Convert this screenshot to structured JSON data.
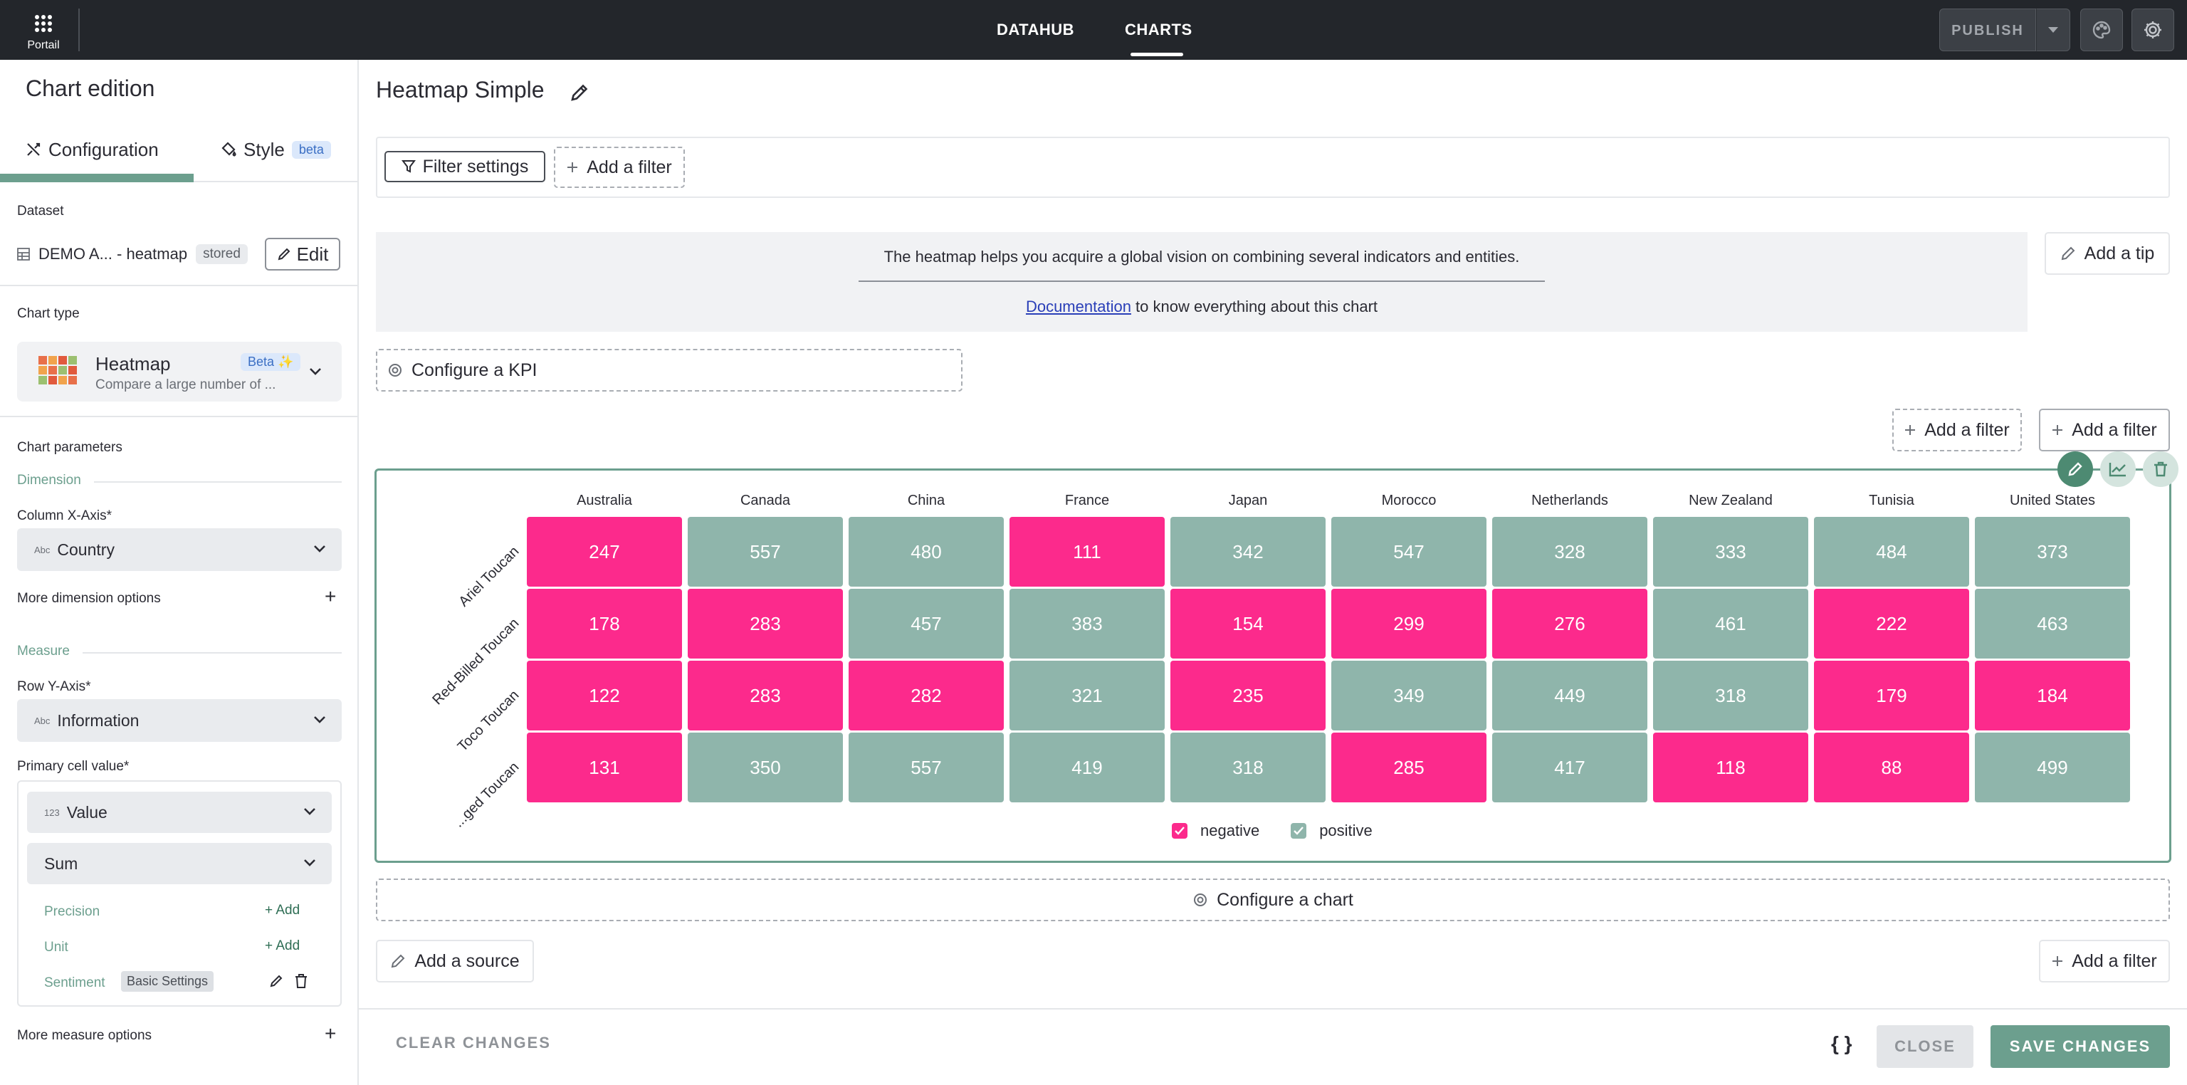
{
  "topbar": {
    "apps_label": "Portail",
    "nav": [
      "DATAHUB",
      "CHARTS"
    ],
    "publish_label": "PUBLISH"
  },
  "sidebar": {
    "title": "Chart edition",
    "tabs": [
      {
        "label": "Configuration",
        "active": true
      },
      {
        "label": "Style",
        "badge": "beta"
      }
    ],
    "dataset": {
      "label": "Dataset",
      "name": "DEMO A... - heatmap",
      "badge": "stored",
      "edit_label": "Edit"
    },
    "chart_type": {
      "label": "Chart type",
      "name": "Heatmap",
      "badge": "Beta ✨",
      "description": "Compare a large number of ..."
    },
    "parameters": {
      "label": "Chart parameters",
      "dimension": {
        "label": "Dimension",
        "x_axis_label": "Column X-Axis*",
        "x_axis_value": "Country",
        "more": "More dimension options"
      },
      "measure": {
        "label": "Measure",
        "y_axis_label": "Row Y-Axis*",
        "y_axis_value": "Information",
        "primary_label": "Primary cell value*",
        "value_field": "Value",
        "aggregation": "Sum",
        "precision_label": "Precision",
        "unit_label": "Unit",
        "sentiment_label": "Sentiment",
        "sentiment_badge": "Basic Settings",
        "add_label": "Add",
        "more": "More measure options"
      }
    }
  },
  "main": {
    "title": "Heatmap Simple",
    "filter_settings": "Filter settings",
    "add_filter": "Add a filter",
    "tip": {
      "text": "The heatmap helps you acquire a global vision on combining several indicators and entities.",
      "doc_link": "Documentation",
      "doc_suffix": " to know everything about this chart",
      "add_tip": "Add a tip"
    },
    "configure_kpi": "Configure a KPI",
    "configure_chart": "Configure a chart",
    "add_source": "Add a source"
  },
  "chart_data": {
    "type": "heatmap",
    "x": [
      "Australia",
      "Canada",
      "China",
      "France",
      "Japan",
      "Morocco",
      "Netherlands",
      "New Zealand",
      "Tunisia",
      "United States"
    ],
    "y": [
      "Ariel Toucan",
      "Red-Billed Toucan",
      "Toco Toucan",
      "...ged Toucan"
    ],
    "values": [
      [
        247,
        557,
        480,
        111,
        342,
        547,
        328,
        333,
        484,
        373
      ],
      [
        178,
        283,
        457,
        383,
        154,
        299,
        276,
        461,
        222,
        463
      ],
      [
        122,
        283,
        282,
        321,
        235,
        349,
        449,
        318,
        179,
        184
      ],
      [
        131,
        350,
        557,
        419,
        318,
        285,
        417,
        118,
        88,
        499
      ]
    ],
    "sentiment": [
      [
        "negative",
        "positive",
        "positive",
        "negative",
        "positive",
        "positive",
        "positive",
        "positive",
        "positive",
        "positive"
      ],
      [
        "negative",
        "negative",
        "positive",
        "positive",
        "negative",
        "negative",
        "negative",
        "positive",
        "negative",
        "positive"
      ],
      [
        "negative",
        "negative",
        "negative",
        "positive",
        "negative",
        "positive",
        "positive",
        "positive",
        "negative",
        "negative"
      ],
      [
        "negative",
        "positive",
        "positive",
        "positive",
        "positive",
        "negative",
        "positive",
        "negative",
        "negative",
        "positive"
      ]
    ],
    "legend": [
      {
        "name": "negative",
        "color": "#fc2a8c"
      },
      {
        "name": "positive",
        "color": "#8fb5ab"
      }
    ],
    "legend_position": "bottom"
  },
  "footer": {
    "clear": "CLEAR CHANGES",
    "json": "{ }",
    "close": "CLOSE",
    "save": "SAVE CHANGES"
  }
}
